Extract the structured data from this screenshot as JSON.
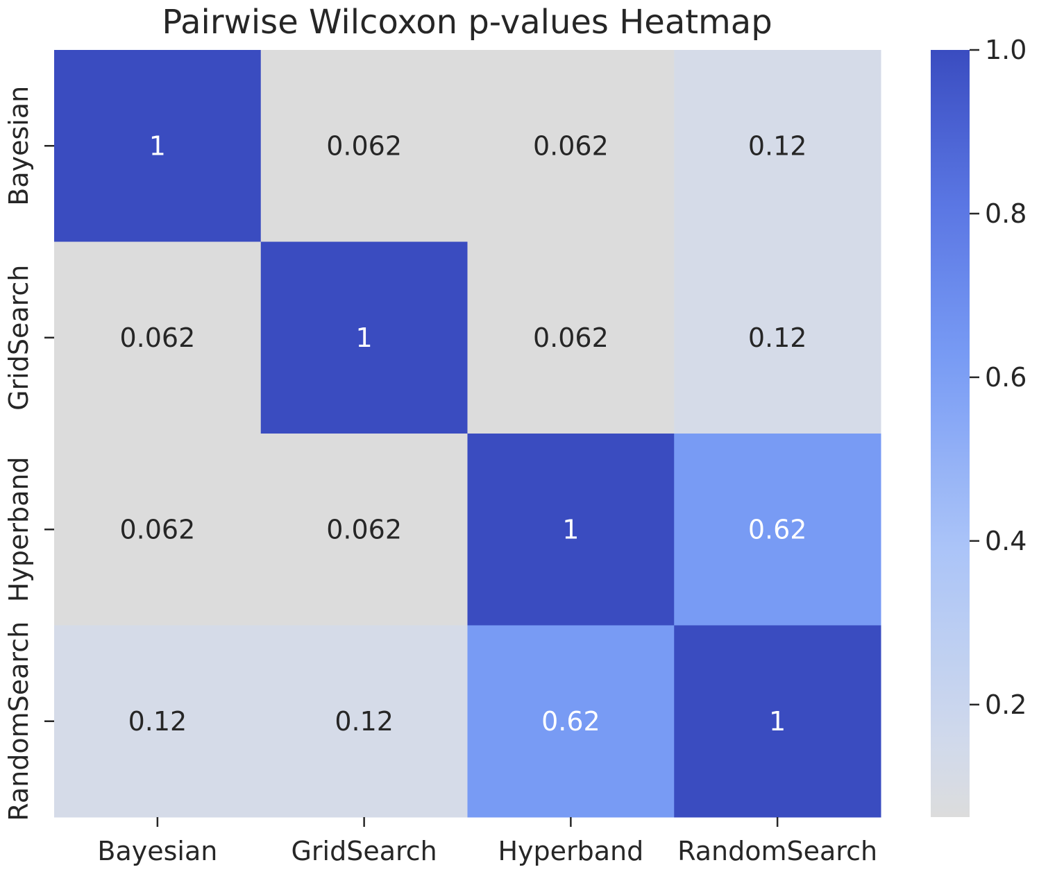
{
  "chart_data": {
    "type": "heatmap",
    "title": "Pairwise Wilcoxon p-values Heatmap",
    "xlabel": "",
    "ylabel": "",
    "x_categories": [
      "Bayesian",
      "GridSearch",
      "Hyperband",
      "RandomSearch"
    ],
    "y_categories": [
      "Bayesian",
      "GridSearch",
      "Hyperband",
      "RandomSearch"
    ],
    "values": [
      [
        1.0,
        0.0625,
        0.0625,
        0.125
      ],
      [
        0.0625,
        1.0,
        0.0625,
        0.125
      ],
      [
        0.0625,
        0.0625,
        1.0,
        0.625
      ],
      [
        0.125,
        0.125,
        0.625,
        1.0
      ]
    ],
    "annotations": [
      [
        "1",
        "0.062",
        "0.062",
        "0.12"
      ],
      [
        "0.062",
        "1",
        "0.062",
        "0.12"
      ],
      [
        "0.062",
        "0.062",
        "1",
        "0.62"
      ],
      [
        "0.12",
        "0.12",
        "0.62",
        "1"
      ]
    ],
    "colorbar": {
      "range": [
        0.0625,
        1.0
      ],
      "ticks": [
        0.2,
        0.4,
        0.6,
        0.8,
        1.0
      ],
      "tick_labels": [
        "0.2",
        "0.4",
        "0.6",
        "0.8",
        "1.0"
      ],
      "colormap": "light gray to blue",
      "color_low": "#dcdcdc",
      "color_high": "#3a4cc0"
    },
    "grid": false,
    "legend": "colorbar-right"
  }
}
